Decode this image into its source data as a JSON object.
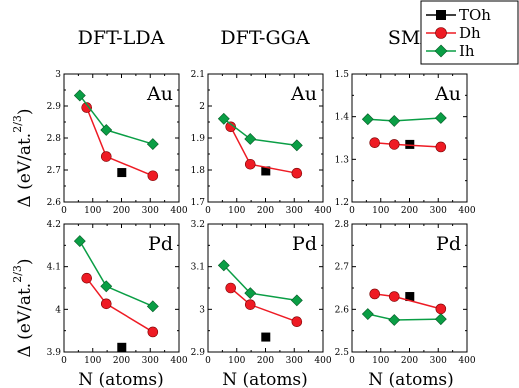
{
  "chart_data": {
    "type": "line",
    "column_titles": [
      "DFT-LDA",
      "DFT-GGA",
      "SMA"
    ],
    "ylabel": "Δ (eV/at.",
    "ylabel_exponent": "2/3",
    "ylabel_close": ")",
    "xlabel": "N (atoms)",
    "xlim": [
      0,
      400
    ],
    "x_ticks": [
      "0",
      "100",
      "200",
      "300",
      "400"
    ],
    "legend": {
      "position": "top-right",
      "entries": [
        {
          "label": "TOh",
          "color": "#000000",
          "marker": "square"
        },
        {
          "label": "Dh",
          "color": "#ee1b24",
          "marker": "circle"
        },
        {
          "label": "Ih",
          "color": "#0a9e45",
          "marker": "diamond"
        }
      ]
    },
    "panels": [
      {
        "row": 0,
        "col": 0,
        "tag": "Au",
        "ylim": [
          2.6,
          3.0
        ],
        "y_ticks": [
          "2.6",
          "2.7",
          "2.8",
          "2.9",
          "3"
        ],
        "series": [
          {
            "name": "TOh",
            "x": [
              201
            ],
            "y": [
              2.692
            ]
          },
          {
            "name": "Dh",
            "x": [
              79,
              147,
              309
            ],
            "y": [
              2.895,
              2.742,
              2.682
            ]
          },
          {
            "name": "Ih",
            "x": [
              55,
              147,
              309
            ],
            "y": [
              2.933,
              2.825,
              2.781
            ]
          }
        ]
      },
      {
        "row": 0,
        "col": 1,
        "tag": "Au",
        "ylim": [
          1.7,
          2.1
        ],
        "y_ticks": [
          "1.7",
          "1.8",
          "1.9",
          "2",
          "2.1"
        ],
        "series": [
          {
            "name": "TOh",
            "x": [
              201
            ],
            "y": [
              1.797
            ]
          },
          {
            "name": "Dh",
            "x": [
              79,
              147,
              309
            ],
            "y": [
              1.935,
              1.818,
              1.79
            ]
          },
          {
            "name": "Ih",
            "x": [
              55,
              147,
              309
            ],
            "y": [
              1.96,
              1.897,
              1.877
            ]
          }
        ]
      },
      {
        "row": 0,
        "col": 2,
        "tag": "Au",
        "ylim": [
          1.2,
          1.5
        ],
        "y_ticks": [
          "1.2",
          "1.3",
          "1.4",
          "1.5"
        ],
        "series": [
          {
            "name": "TOh",
            "x": [
              201
            ],
            "y": [
              1.335
            ]
          },
          {
            "name": "Dh",
            "x": [
              79,
              147,
              309
            ],
            "y": [
              1.339,
              1.335,
              1.329
            ]
          },
          {
            "name": "Ih",
            "x": [
              55,
              147,
              309
            ],
            "y": [
              1.394,
              1.39,
              1.397
            ]
          }
        ]
      },
      {
        "row": 1,
        "col": 0,
        "tag": "Pd",
        "ylim": [
          3.9,
          4.2
        ],
        "y_ticks": [
          "3.9",
          "4",
          "4.1",
          "4.2"
        ],
        "series": [
          {
            "name": "TOh",
            "x": [
              201
            ],
            "y": [
              3.911
            ]
          },
          {
            "name": "Dh",
            "x": [
              79,
              147,
              309
            ],
            "y": [
              4.073,
              4.013,
              3.947
            ]
          },
          {
            "name": "Ih",
            "x": [
              55,
              147,
              309
            ],
            "y": [
              4.16,
              4.054,
              4.007
            ]
          }
        ]
      },
      {
        "row": 1,
        "col": 1,
        "tag": "Pd",
        "ylim": [
          2.9,
          3.2
        ],
        "y_ticks": [
          "2.9",
          "3",
          "3.1",
          "3.2"
        ],
        "series": [
          {
            "name": "TOh",
            "x": [
              201
            ],
            "y": [
              2.935
            ]
          },
          {
            "name": "Dh",
            "x": [
              79,
              147,
              309
            ],
            "y": [
              3.05,
              3.011,
              2.971
            ]
          },
          {
            "name": "Ih",
            "x": [
              55,
              147,
              309
            ],
            "y": [
              3.103,
              3.038,
              3.021
            ]
          }
        ]
      },
      {
        "row": 1,
        "col": 2,
        "tag": "Pd",
        "ylim": [
          2.5,
          2.8
        ],
        "y_ticks": [
          "2.5",
          "2.6",
          "2.7",
          "2.8"
        ],
        "series": [
          {
            "name": "TOh",
            "x": [
              201
            ],
            "y": [
              2.63
            ]
          },
          {
            "name": "Dh",
            "x": [
              79,
              147,
              309
            ],
            "y": [
              2.636,
              2.63,
              2.601
            ]
          },
          {
            "name": "Ih",
            "x": [
              55,
              147,
              309
            ],
            "y": [
              2.589,
              2.575,
              2.577
            ]
          }
        ]
      }
    ]
  }
}
